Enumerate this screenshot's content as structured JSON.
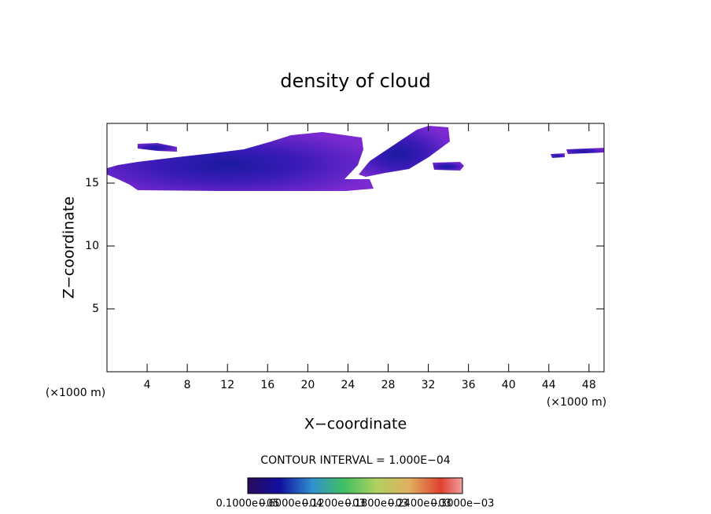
{
  "chart_data": {
    "type": "contour",
    "title": "density of cloud",
    "xlabel": "X−coordinate",
    "ylabel": "Z−coordinate",
    "x_unit": "(×1000 m)",
    "y_unit": "(×1000 m)",
    "xlim": [
      0,
      49.5
    ],
    "ylim": [
      0,
      19.75
    ],
    "xticks": [
      4,
      8,
      12,
      16,
      20,
      24,
      28,
      32,
      36,
      40,
      44,
      48
    ],
    "yticks": [
      5,
      10,
      15
    ],
    "contour_interval": "CONTOUR INTERVAL = 1.000E−04",
    "colorbar_labels": [
      "0.1000e−05",
      "0.6000e−04",
      "0.1200e−03",
      "0.1800e−03",
      "0.2400e−03",
      "0.3000e−03"
    ]
  }
}
